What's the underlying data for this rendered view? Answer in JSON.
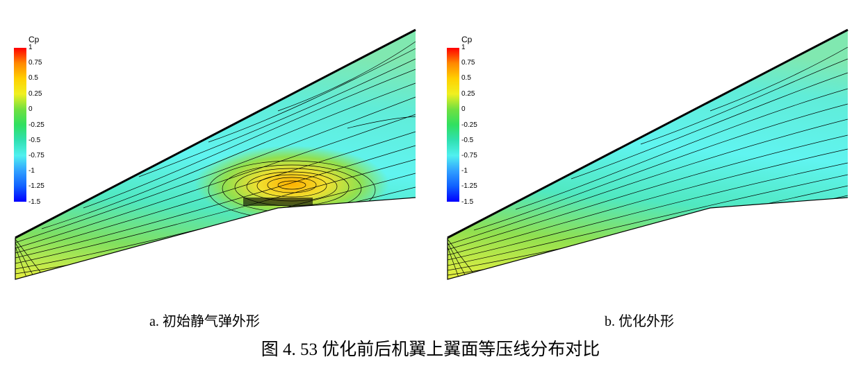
{
  "legend": {
    "title": "Cp",
    "ticks": [
      "1",
      "0.75",
      "0.5",
      "0.25",
      "0",
      "-0.25",
      "-0.5",
      "-0.75",
      "-1",
      "-1.25",
      "-1.5"
    ],
    "colors": [
      "#ff0000",
      "#ff8800",
      "#ffd000",
      "#f0f020",
      "#70e040",
      "#30e060",
      "#30e0b0",
      "#50f0f0",
      "#30a0ff",
      "#1060ff",
      "#0000ff"
    ]
  },
  "panels": [
    {
      "caption": "a.  初始静气弹外形"
    },
    {
      "caption": "b.  优化外形"
    }
  ],
  "figure_caption": "图 4. 53    优化前后机翼上翼面等压线分布对比"
}
